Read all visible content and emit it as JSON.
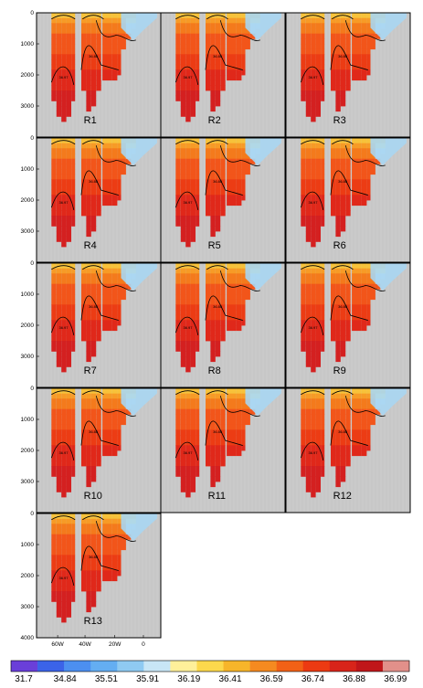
{
  "chart_data": {
    "type": "heatmap",
    "panels": [
      "R1",
      "R2",
      "R3",
      "R4",
      "R5",
      "R6",
      "R7",
      "R8",
      "R9",
      "R10",
      "R11",
      "R12",
      "R13"
    ],
    "layout": {
      "columns": 3,
      "rows": 5
    },
    "y_axis": {
      "ticks": [
        "0",
        "1000",
        "2000",
        "3000",
        "4000"
      ],
      "ylim": [
        4000,
        0
      ]
    },
    "x_axis": {
      "ticks": [
        "60W",
        "40W",
        "20W",
        "0"
      ]
    },
    "contour_labels": [
      "36.88",
      "36.97"
    ],
    "colorbar": {
      "levels": [
        "31.7",
        "34.84",
        "35.51",
        "35.91",
        "36.19",
        "36.41",
        "36.59",
        "36.74",
        "36.88",
        "36.99"
      ],
      "colors": [
        "#6a3fd9",
        "#3b63e8",
        "#4c8ff0",
        "#64aef2",
        "#8fcaf2",
        "#c8e6f6",
        "#fff09a",
        "#fcd84c",
        "#f7b52a",
        "#f58a20",
        "#f26116",
        "#ec3a12",
        "#d8241a",
        "#c0161a",
        "#e2908a"
      ]
    }
  }
}
